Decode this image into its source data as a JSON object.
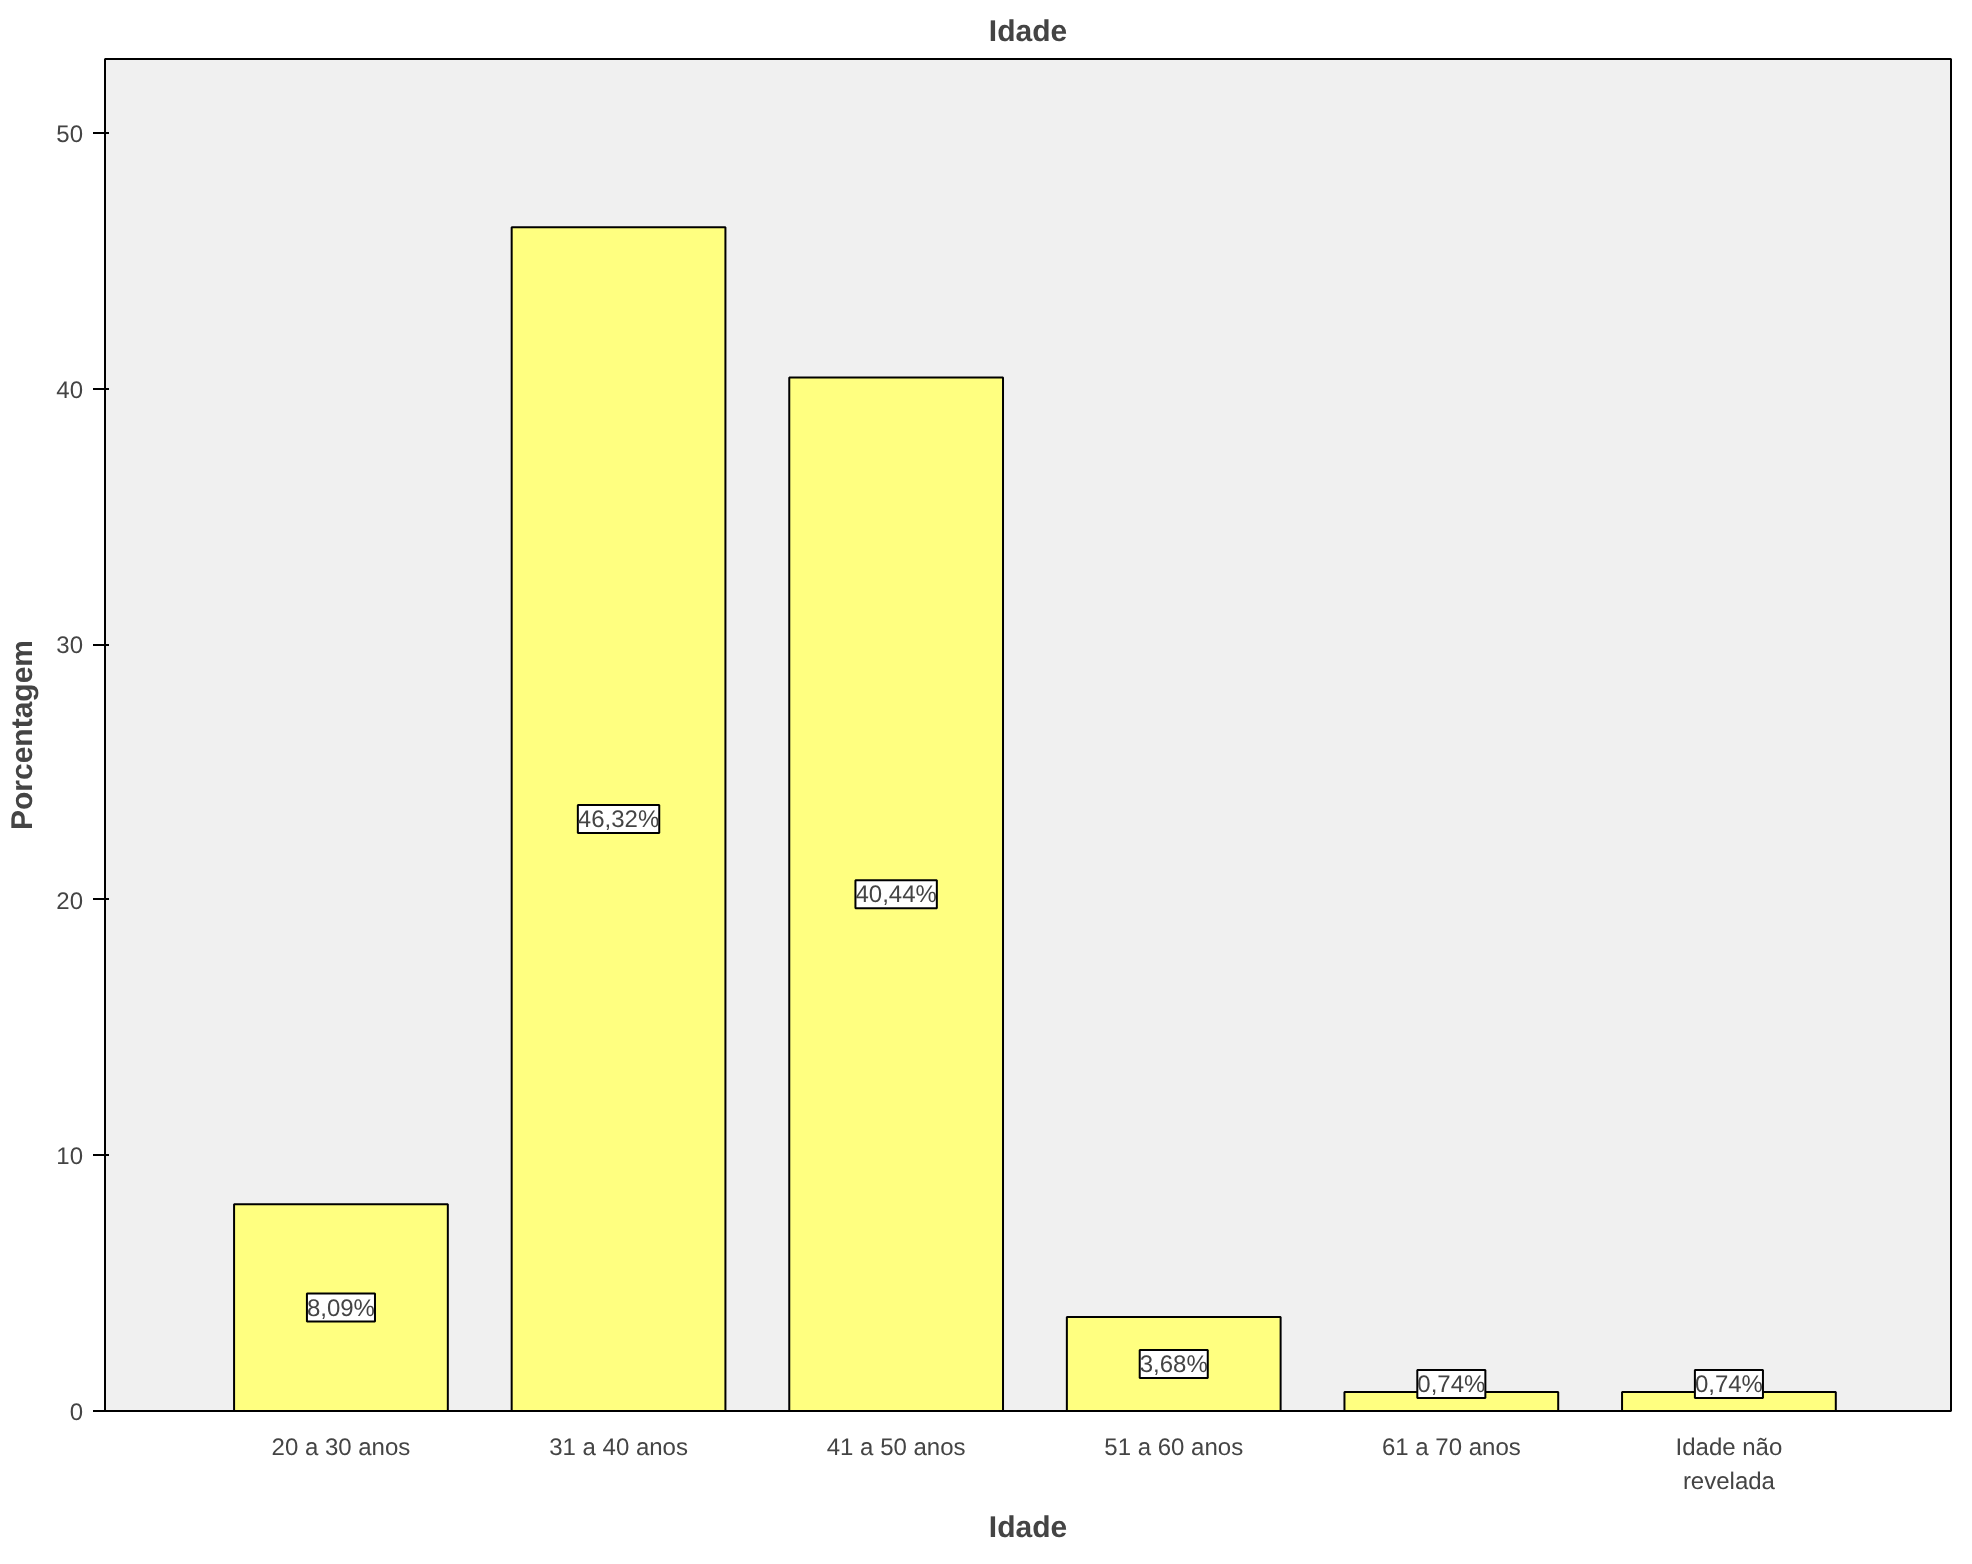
{
  "chart_data": {
    "type": "bar",
    "title": "Idade",
    "xlabel": "Idade",
    "ylabel": "Porcentagem",
    "categories": [
      "20 a 30 anos",
      "31 a 40 anos",
      "41 a 50 anos",
      "51 a 60 anos",
      "61 a 70 anos",
      "Idade não\nrevelada"
    ],
    "values": [
      8.09,
      46.32,
      40.44,
      3.68,
      0.74,
      0.74
    ],
    "value_labels": [
      "8,09%",
      "46,32%",
      "40,44%",
      "3,68%",
      "0,74%",
      "0,74%"
    ],
    "color": "#ffff80",
    "ylim": [
      0,
      52.9
    ],
    "yticks": [
      0,
      10,
      20,
      30,
      40,
      50
    ],
    "grid": false
  }
}
